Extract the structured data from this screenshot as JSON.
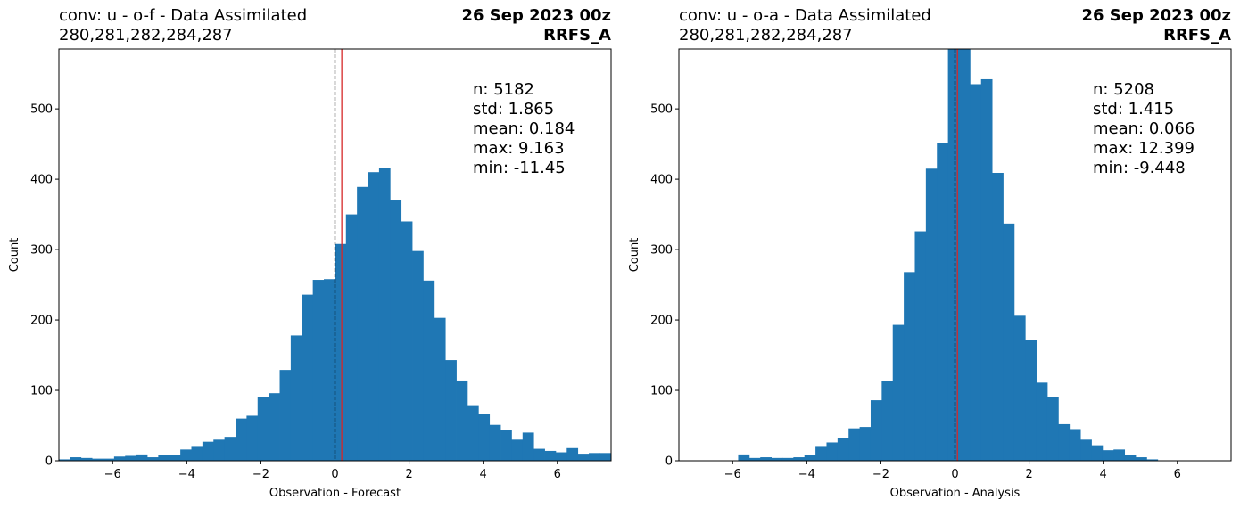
{
  "chart_data": [
    {
      "type": "bar",
      "title": "conv: u - o-f - Data Assimilated",
      "subtitle": "280,281,282,284,287",
      "date": "26 Sep 2023 00z",
      "model": "RRFS_A",
      "xlabel": "Observation - Forecast",
      "ylabel": "Count",
      "xlim": [
        -7.45,
        7.45
      ],
      "ylim": [
        0,
        585
      ],
      "xticks": [
        -6,
        -4,
        -2,
        0,
        2,
        4,
        6
      ],
      "xtick_labels": [
        "−6",
        "−4",
        "−2",
        "0",
        "2",
        "4",
        "6"
      ],
      "yticks": [
        0,
        100,
        200,
        300,
        400,
        500
      ],
      "bin_start": -7.45,
      "bin_width": 0.2979,
      "values": [
        2,
        5,
        4,
        3,
        3,
        6,
        7,
        9,
        5,
        8,
        8,
        16,
        21,
        27,
        30,
        34,
        60,
        64,
        91,
        96,
        129,
        178,
        236,
        257,
        258,
        308,
        350,
        389,
        410,
        416,
        371,
        340,
        298,
        256,
        203,
        143,
        114,
        79,
        66,
        51,
        44,
        30,
        40,
        17,
        14,
        12,
        18,
        10,
        11,
        11,
        4,
        3
      ],
      "mean_line": 0.184,
      "zero_line": 0,
      "stats": [
        "n: 5182",
        "std: 1.865",
        "mean: 0.184",
        "max: 9.163",
        "min: -11.45"
      ],
      "bar_color": "#1f77b4",
      "mean_line_color": "#d62728",
      "grid": false,
      "legend": "none"
    },
    {
      "type": "bar",
      "title": "conv: u - o-a - Data Assimilated",
      "subtitle": "280,281,282,284,287",
      "date": "26 Sep 2023 00z",
      "model": "RRFS_A",
      "xlabel": "Observation - Analysis",
      "ylabel": "Count",
      "xlim": [
        -7.45,
        7.45
      ],
      "ylim": [
        0,
        585
      ],
      "xticks": [
        -6,
        -4,
        -2,
        0,
        2,
        4,
        6
      ],
      "xtick_labels": [
        "−6",
        "−4",
        "−2",
        "0",
        "2",
        "4",
        "6"
      ],
      "yticks": [
        0,
        100,
        200,
        300,
        400,
        500
      ],
      "bin_start": -5.85,
      "bin_width": 0.2979,
      "values": [
        9,
        4,
        5,
        4,
        4,
        5,
        8,
        21,
        26,
        32,
        46,
        48,
        86,
        113,
        193,
        268,
        326,
        415,
        452,
        590,
        590,
        535,
        542,
        409,
        337,
        206,
        172,
        111,
        90,
        52,
        45,
        30,
        22,
        15,
        16,
        8,
        5,
        2
      ],
      "mean_line": 0.066,
      "zero_line": 0,
      "stats": [
        "n: 5208",
        "std: 1.415",
        "mean: 0.066",
        "max: 12.399",
        "min: -9.448"
      ],
      "bar_color": "#1f77b4",
      "mean_line_color": "#d62728",
      "grid": false,
      "legend": "none"
    }
  ]
}
